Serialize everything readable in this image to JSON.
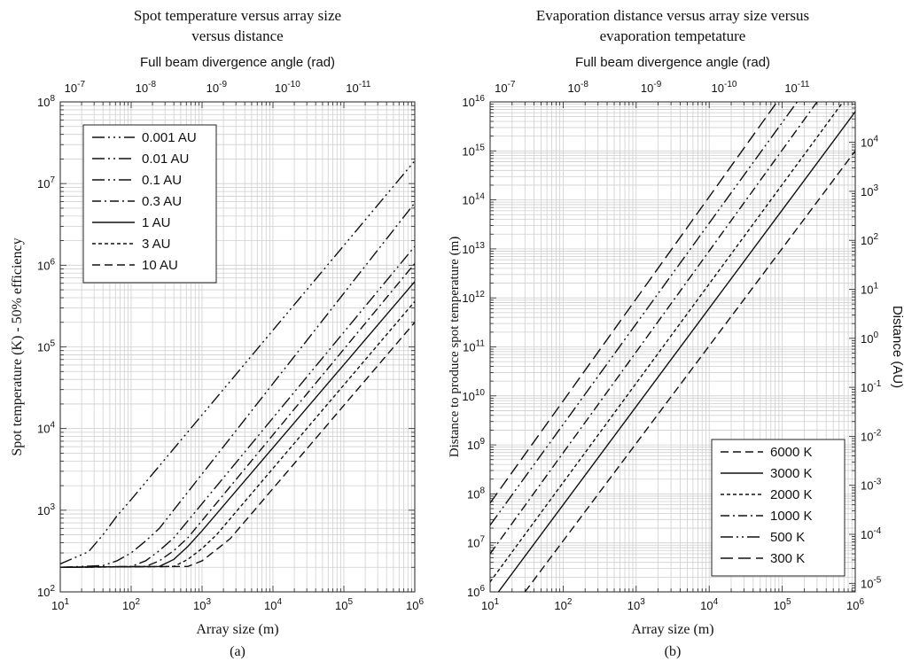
{
  "chart_data": [
    {
      "type": "line",
      "title_lines": [
        "Spot temperature versus array size",
        "versus distance"
      ],
      "top_axis_label": "Full beam divergence angle (rad)",
      "top_ticks": [
        {
          "x": 16,
          "base": "10",
          "exp": "-7"
        },
        {
          "x": 160,
          "base": "10",
          "exp": "-8"
        },
        {
          "x": 1600,
          "base": "10",
          "exp": "-9"
        },
        {
          "x": 16000,
          "base": "10",
          "exp": "-10"
        },
        {
          "x": 160000,
          "base": "10",
          "exp": "-11"
        }
      ],
      "xlabel": "Array size (m)",
      "ylabel": "Spot temperature (K)  - 50% efficiency",
      "x_scale": "log",
      "y_scale": "log",
      "xlim": [
        10,
        1000000
      ],
      "ylim": [
        100,
        100000000
      ],
      "x_ticks": [
        {
          "v": 10,
          "base": "10",
          "exp": "1"
        },
        {
          "v": 100,
          "base": "10",
          "exp": "2"
        },
        {
          "v": 1000,
          "base": "10",
          "exp": "3"
        },
        {
          "v": 10000,
          "base": "10",
          "exp": "4"
        },
        {
          "v": 100000,
          "base": "10",
          "exp": "5"
        },
        {
          "v": 1000000,
          "base": "10",
          "exp": "6"
        }
      ],
      "y_ticks": [
        {
          "v": 100,
          "base": "10",
          "exp": "2"
        },
        {
          "v": 1000,
          "base": "10",
          "exp": "3"
        },
        {
          "v": 10000,
          "base": "10",
          "exp": "4"
        },
        {
          "v": 100000,
          "base": "10",
          "exp": "5"
        },
        {
          "v": 1000000,
          "base": "10",
          "exp": "6"
        },
        {
          "v": 10000000,
          "base": "10",
          "exp": "7"
        },
        {
          "v": 100000000,
          "base": "10",
          "exp": "8"
        }
      ],
      "grid": true,
      "legend_position": "top-left",
      "series": [
        {
          "name": "0.001 AU",
          "dash": "14 4 2 4 2 4 2 4",
          "x": [
            10,
            25,
            40,
            63,
            100,
            1000000
          ],
          "y": [
            220,
            310,
            500,
            850,
            1350,
            19000000.0
          ]
        },
        {
          "name": "0.01 AU",
          "dash": "14 4 2 4 2 4",
          "x": [
            10,
            40,
            63,
            100,
            160,
            250,
            1000000
          ],
          "y": [
            200,
            210,
            240,
            300,
            420,
            600,
            5800000.0
          ]
        },
        {
          "name": "0.1 AU",
          "dash": "14 4 2 4 2 4",
          "x": [
            10,
            100,
            160,
            250,
            400,
            1000000
          ],
          "y": [
            200,
            205,
            240,
            320,
            460,
            1700000.0
          ]
        },
        {
          "name": "0.3 AU",
          "dash": "10 4 2 4",
          "x": [
            10,
            160,
            250,
            400,
            630,
            1000000
          ],
          "y": [
            200,
            205,
            240,
            320,
            460,
            1050000.0
          ]
        },
        {
          "name": "1 AU",
          "dash": "",
          "x": [
            10,
            250,
            400,
            630,
            1000,
            1000000
          ],
          "y": [
            200,
            205,
            250,
            360,
            560,
            630000.0
          ]
        },
        {
          "name": "3 AU",
          "dash": "4 3",
          "x": [
            10,
            400,
            630,
            1000,
            1600,
            1000000
          ],
          "y": [
            200,
            205,
            250,
            340,
            500,
            360000.0
          ]
        },
        {
          "name": "10 AU",
          "dash": "9 5",
          "x": [
            10,
            630,
            1000,
            1600,
            2500,
            1000000
          ],
          "y": [
            200,
            205,
            240,
            330,
            450,
            200000.0
          ]
        }
      ],
      "caption": "(a)"
    },
    {
      "type": "line",
      "title_lines": [
        "Evaporation distance versus array size versus",
        "evaporation tempetature"
      ],
      "top_axis_label": "Full beam divergence angle (rad)",
      "top_ticks": [
        {
          "x": 16,
          "base": "10",
          "exp": "-7"
        },
        {
          "x": 160,
          "base": "10",
          "exp": "-8"
        },
        {
          "x": 1600,
          "base": "10",
          "exp": "-9"
        },
        {
          "x": 16000,
          "base": "10",
          "exp": "-10"
        },
        {
          "x": 160000,
          "base": "10",
          "exp": "-11"
        }
      ],
      "xlabel": "Array size (m)",
      "ylabel": "Distance to produce spot temperature (m)",
      "y2label": "Distance (AU)",
      "x_scale": "log",
      "y_scale": "log",
      "xlim": [
        10,
        1000000
      ],
      "ylim": [
        1000000,
        1e+16
      ],
      "x_ticks": [
        {
          "v": 10,
          "base": "10",
          "exp": "1"
        },
        {
          "v": 100,
          "base": "10",
          "exp": "2"
        },
        {
          "v": 1000,
          "base": "10",
          "exp": "3"
        },
        {
          "v": 10000,
          "base": "10",
          "exp": "4"
        },
        {
          "v": 100000,
          "base": "10",
          "exp": "5"
        },
        {
          "v": 1000000,
          "base": "10",
          "exp": "6"
        }
      ],
      "y_ticks": [
        {
          "v": 1000000.0,
          "base": "10",
          "exp": "6"
        },
        {
          "v": 10000000.0,
          "base": "10",
          "exp": "7"
        },
        {
          "v": 100000000.0,
          "base": "10",
          "exp": "8"
        },
        {
          "v": 1000000000.0,
          "base": "10",
          "exp": "9"
        },
        {
          "v": 10000000000.0,
          "base": "10",
          "exp": "10"
        },
        {
          "v": 100000000000.0,
          "base": "10",
          "exp": "11"
        },
        {
          "v": 1000000000000.0,
          "base": "10",
          "exp": "12"
        },
        {
          "v": 10000000000000.0,
          "base": "10",
          "exp": "13"
        },
        {
          "v": 100000000000000.0,
          "base": "10",
          "exp": "14"
        },
        {
          "v": 1000000000000000.0,
          "base": "10",
          "exp": "15"
        },
        {
          "v": 1e+16,
          "base": "10",
          "exp": "16"
        }
      ],
      "y2_ticks": [
        {
          "au": 1e-05,
          "base": "10",
          "exp": "-5"
        },
        {
          "au": 0.0001,
          "base": "10",
          "exp": "-4"
        },
        {
          "au": 0.001,
          "base": "10",
          "exp": "-3"
        },
        {
          "au": 0.01,
          "base": "10",
          "exp": "-2"
        },
        {
          "au": 0.1,
          "base": "10",
          "exp": "-1"
        },
        {
          "au": 1,
          "base": "10",
          "exp": "0"
        },
        {
          "au": 10,
          "base": "10",
          "exp": "1"
        },
        {
          "au": 100,
          "base": "10",
          "exp": "2"
        },
        {
          "au": 1000,
          "base": "10",
          "exp": "3"
        },
        {
          "au": 10000,
          "base": "10",
          "exp": "4"
        }
      ],
      "meters_per_au": 149600000000.0,
      "grid": true,
      "legend_position": "bottom-right",
      "series": [
        {
          "name": "6000 K",
          "dash": "9 5",
          "x": [
            30,
            1000000
          ],
          "y": [
            1000000,
            1000000000000000.0
          ]
        },
        {
          "name": "3000 K",
          "dash": "",
          "x": [
            13,
            1000000
          ],
          "y": [
            1000000,
            6300000000000000.0
          ]
        },
        {
          "name": "2000 K",
          "dash": "4 3",
          "x": [
            10,
            680000
          ],
          "y": [
            1600000,
            1e+16
          ]
        },
        {
          "name": "1000 K",
          "dash": "10 4 2 4",
          "x": [
            10,
            300000
          ],
          "y": [
            6000000,
            1e+16
          ]
        },
        {
          "name": "500 K",
          "dash": "14 4 2 4 2 4",
          "x": [
            10,
            160000
          ],
          "y": [
            23000000.0,
            1e+16
          ]
        },
        {
          "name": "300 K",
          "dash": "14 6",
          "x": [
            10,
            85000
          ],
          "y": [
            65000000.0,
            1e+16
          ]
        }
      ],
      "caption": "(b)"
    }
  ]
}
